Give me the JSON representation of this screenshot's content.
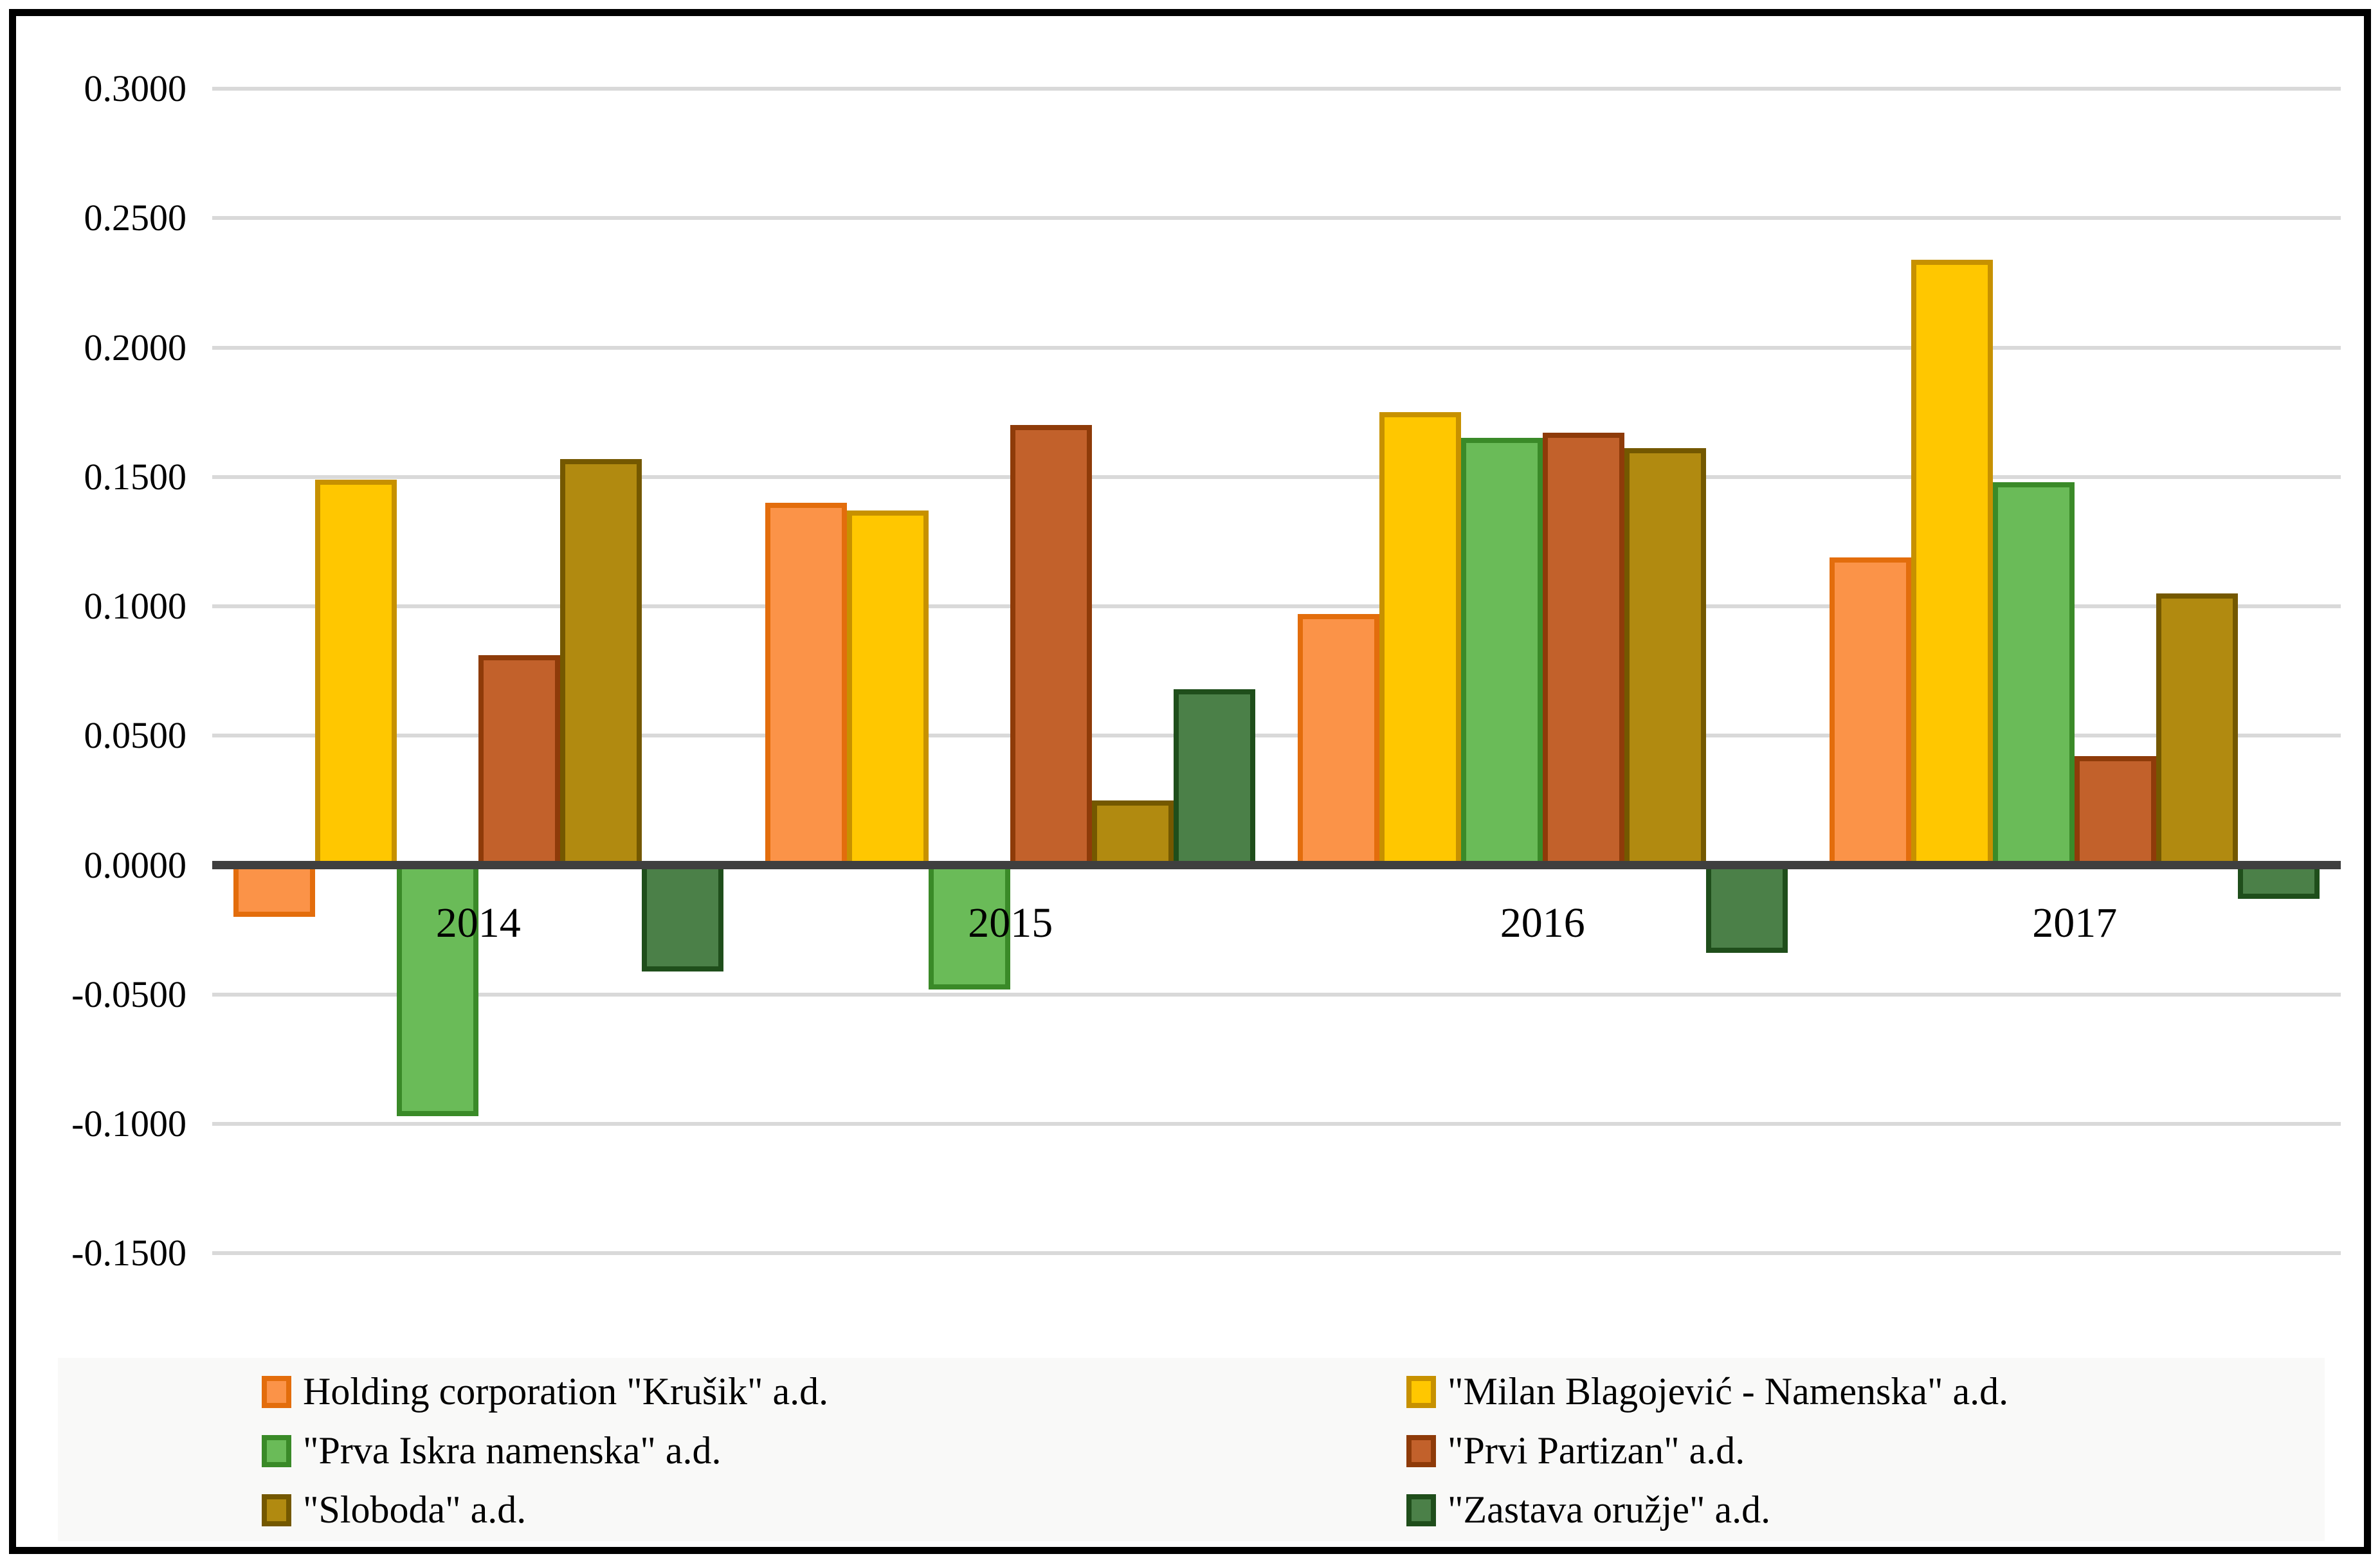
{
  "chart_data": {
    "type": "bar",
    "title": "",
    "xlabel": "",
    "ylabel": "",
    "grid": true,
    "legend_position": "bottom",
    "ylim": [
      -0.15,
      0.3
    ],
    "categories": [
      "2014",
      "2015",
      "2016",
      "2017"
    ],
    "yticks": [
      {
        "value": 0.3,
        "label": "0.3000"
      },
      {
        "value": 0.25,
        "label": "0.2500"
      },
      {
        "value": 0.2,
        "label": "0.2000"
      },
      {
        "value": 0.15,
        "label": "0.1500"
      },
      {
        "value": 0.1,
        "label": "0.1000"
      },
      {
        "value": 0.05,
        "label": "0.0500"
      },
      {
        "value": 0.0,
        "label": "0.0000"
      },
      {
        "value": -0.05,
        "label": "-0.0500"
      },
      {
        "value": -0.1,
        "label": "-0.1000"
      },
      {
        "value": -0.15,
        "label": "-0.1500"
      }
    ],
    "series": [
      {
        "name": "Holding corporation \"Krušik\" a.d.",
        "fill": "#FB9348",
        "border": "#E36D0C",
        "values": [
          -0.02,
          0.14,
          0.097,
          0.119
        ]
      },
      {
        "name": "\"Milan Blagojević - Namenska\" a.d.",
        "fill": "#FFC700",
        "border": "#C79100",
        "values": [
          0.149,
          0.137,
          0.175,
          0.234
        ]
      },
      {
        "name": "\"Prva Iskra namenska\" a.d.",
        "fill": "#6ABB58",
        "border": "#3A8A28",
        "values": [
          -0.097,
          -0.048,
          0.165,
          0.148
        ]
      },
      {
        "name": "\"Prvi Partizan\" a.d.",
        "fill": "#C2612B",
        "border": "#8E3B09",
        "values": [
          0.081,
          0.17,
          0.167,
          0.042
        ]
      },
      {
        "name": "\"Sloboda\" a.d.",
        "fill": "#B18A10",
        "border": "#745800",
        "values": [
          0.157,
          0.025,
          0.161,
          0.105
        ]
      },
      {
        "name": "\"Zastava oružje\" a.d.",
        "fill": "#4B8048",
        "border": "#1F4E1B",
        "values": [
          -0.041,
          0.068,
          -0.034,
          -0.013
        ]
      }
    ],
    "colors": {
      "gridline": "#d9d9d9",
      "zero_axis": "#3f3f3f",
      "legend_background": "#f9f9f8",
      "frame_border": "#000000"
    }
  }
}
